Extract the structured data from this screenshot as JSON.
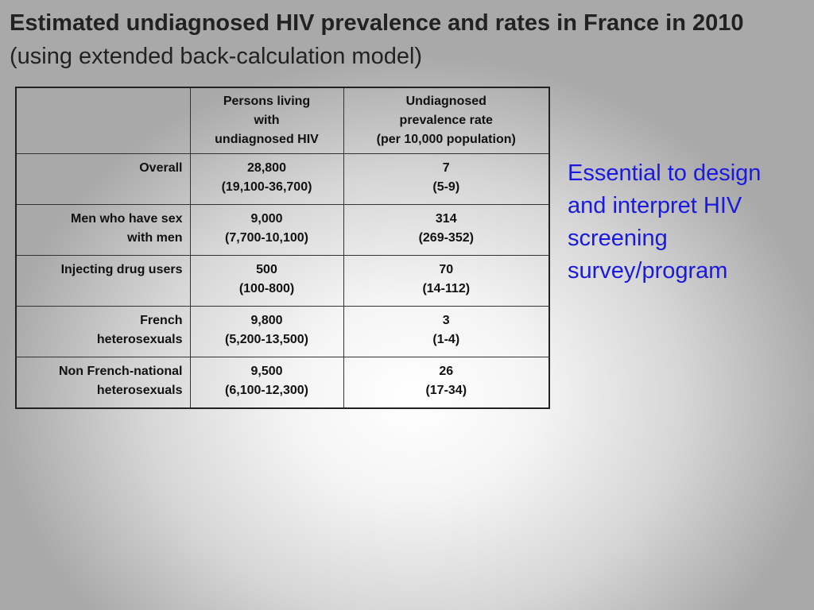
{
  "title": {
    "bold": "Estimated undiagnosed HIV prevalence and rates in France in 2010",
    "normal": "(using extended back-calculation model)"
  },
  "table": {
    "headers": [
      "",
      "Persons living with undiagnosed HIV",
      "Undiagnosed prevalence rate (per 10,000 population)"
    ],
    "header_lines": {
      "col1": [
        "Persons living",
        "with",
        "undiagnosed HIV"
      ],
      "col2": [
        "Undiagnosed",
        "prevalence rate",
        "(per 10,000 population)"
      ]
    },
    "rows": [
      {
        "label": "Overall",
        "label_lines": [
          "Overall"
        ],
        "persons": "28,800",
        "persons_ci": "(19,100-36,700)",
        "rate": "7",
        "rate_ci": "(5-9)"
      },
      {
        "label": "Men who have sex with men",
        "label_lines": [
          "Men who have sex",
          "with men"
        ],
        "persons": "9,000",
        "persons_ci": "(7,700-10,100)",
        "rate": "314",
        "rate_ci": "(269-352)"
      },
      {
        "label": "Injecting drug users",
        "label_lines": [
          "Injecting drug users"
        ],
        "persons": "500",
        "persons_ci": "(100-800)",
        "rate": "70",
        "rate_ci": "(14-112)"
      },
      {
        "label": "French heterosexuals",
        "label_lines": [
          "French",
          "heterosexuals"
        ],
        "persons": "9,800",
        "persons_ci": "(5,200-13,500)",
        "rate": "3",
        "rate_ci": "(1-4)"
      },
      {
        "label": "Non French-national heterosexuals",
        "label_lines": [
          "Non French-national",
          "heterosexuals"
        ],
        "persons": "9,500",
        "persons_ci": "(6,100-12,300)",
        "rate": "26",
        "rate_ci": "(17-34)"
      }
    ]
  },
  "side_note": {
    "lines": [
      "Essential to design",
      "and interpret HIV",
      "screening",
      "survey/program"
    ]
  },
  "colors": {
    "side_note_text": "#1a1adf",
    "title_text": "#222222",
    "table_border": "#333333"
  }
}
